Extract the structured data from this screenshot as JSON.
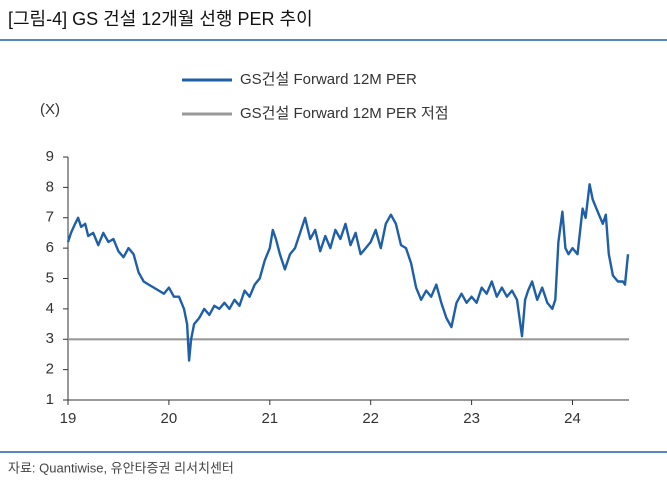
{
  "chart_data": {
    "type": "line",
    "title": "[그림-4] GS 건설 12개월 선행 PER 추이",
    "y_label": "(X)",
    "source": "자료: Quantiwise, 유안타증권 리서치센터",
    "xlim": [
      19,
      24.56
    ],
    "xticks": [
      19,
      20,
      21,
      22,
      23,
      24
    ],
    "ylim": [
      1,
      9
    ],
    "yticks": [
      1,
      2,
      3,
      4,
      5,
      6,
      7,
      8,
      9
    ],
    "series": [
      {
        "name": "GS건설 Forward 12M PER",
        "color": "#1f5fa8",
        "x": [
          19,
          19.03,
          19.07,
          19.1,
          19.13,
          19.17,
          19.2,
          19.25,
          19.3,
          19.35,
          19.4,
          19.45,
          19.5,
          19.55,
          19.6,
          19.65,
          19.7,
          19.75,
          19.8,
          19.85,
          19.9,
          19.95,
          20,
          20.05,
          20.1,
          20.15,
          20.18,
          20.2,
          20.22,
          20.25,
          20.3,
          20.35,
          20.4,
          20.45,
          20.5,
          20.55,
          20.6,
          20.65,
          20.7,
          20.75,
          20.8,
          20.85,
          20.9,
          20.95,
          21,
          21.03,
          21.06,
          21.1,
          21.15,
          21.2,
          21.25,
          21.3,
          21.35,
          21.4,
          21.45,
          21.5,
          21.55,
          21.6,
          21.65,
          21.7,
          21.75,
          21.8,
          21.85,
          21.9,
          21.95,
          22,
          22.05,
          22.1,
          22.15,
          22.2,
          22.25,
          22.3,
          22.35,
          22.4,
          22.45,
          22.5,
          22.55,
          22.6,
          22.65,
          22.7,
          22.75,
          22.8,
          22.85,
          22.9,
          22.95,
          23,
          23.05,
          23.1,
          23.15,
          23.2,
          23.25,
          23.3,
          23.35,
          23.4,
          23.45,
          23.5,
          23.53,
          23.56,
          23.6,
          23.65,
          23.7,
          23.75,
          23.8,
          23.83,
          23.86,
          23.9,
          23.93,
          23.96,
          24,
          24.05,
          24.1,
          24.13,
          24.17,
          24.2,
          24.25,
          24.3,
          24.33,
          24.36,
          24.4,
          24.45,
          24.5,
          24.52,
          24.55
        ],
        "values": [
          6.2,
          6.5,
          6.8,
          7.0,
          6.7,
          6.8,
          6.4,
          6.5,
          6.1,
          6.5,
          6.2,
          6.3,
          5.9,
          5.7,
          6.0,
          5.8,
          5.2,
          4.9,
          4.8,
          4.7,
          4.6,
          4.5,
          4.7,
          4.4,
          4.4,
          4.0,
          3.5,
          2.3,
          3.0,
          3.5,
          3.7,
          4.0,
          3.8,
          4.1,
          4.0,
          4.2,
          4.0,
          4.3,
          4.1,
          4.6,
          4.4,
          4.8,
          5.0,
          5.6,
          6.0,
          6.6,
          6.3,
          5.8,
          5.3,
          5.8,
          6.0,
          6.5,
          7.0,
          6.3,
          6.6,
          5.9,
          6.4,
          6.0,
          6.6,
          6.3,
          6.8,
          6.1,
          6.5,
          5.8,
          6.0,
          6.2,
          6.6,
          6.0,
          6.8,
          7.1,
          6.8,
          6.1,
          6.0,
          5.5,
          4.7,
          4.3,
          4.6,
          4.4,
          4.8,
          4.2,
          3.7,
          3.4,
          4.2,
          4.5,
          4.2,
          4.4,
          4.2,
          4.7,
          4.5,
          4.9,
          4.4,
          4.7,
          4.4,
          4.6,
          4.3,
          3.1,
          4.3,
          4.6,
          4.9,
          4.3,
          4.7,
          4.2,
          4.0,
          4.3,
          6.2,
          7.2,
          6.0,
          5.8,
          6.0,
          5.8,
          7.3,
          7.0,
          8.1,
          7.6,
          7.2,
          6.8,
          7.1,
          5.8,
          5.1,
          4.9,
          4.9,
          4.8,
          5.8
        ]
      },
      {
        "name": "GS건설 Forward 12M PER 저점",
        "color": "#999999",
        "x": [
          19,
          24.56
        ],
        "values": [
          3,
          3
        ]
      }
    ]
  }
}
